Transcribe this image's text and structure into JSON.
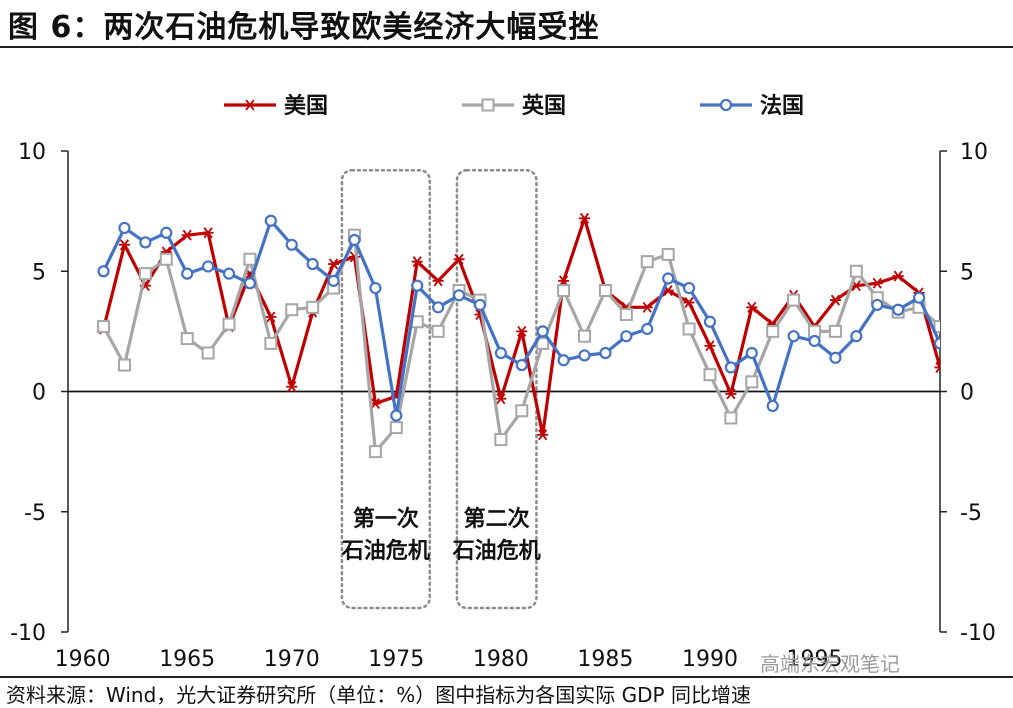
{
  "title": "图 6：两次石油危机导致欧美经济大幅受挫",
  "footer": {
    "source": "资料来源：Wind，光大证券研究所（单位：%）图中指标为各国实际 GDP 同比增速",
    "watermark": "高端东宏观笔记"
  },
  "chart_data": {
    "type": "line",
    "x": [
      1961,
      1962,
      1963,
      1964,
      1965,
      1966,
      1967,
      1968,
      1969,
      1970,
      1971,
      1972,
      1973,
      1974,
      1975,
      1976,
      1977,
      1978,
      1979,
      1980,
      1981,
      1982,
      1983,
      1984,
      1985,
      1986,
      1987,
      1988,
      1989,
      1990,
      1991,
      1992,
      1993,
      1994,
      1995,
      1996,
      1997,
      1998,
      1999,
      2000,
      2001
    ],
    "xlim": [
      1959.3,
      2001
    ],
    "xticks": [
      1960,
      1965,
      1970,
      1975,
      1980,
      1985,
      1990,
      1995
    ],
    "xtick_labels": [
      "1960",
      "1965",
      "1970",
      "1975",
      "1980",
      "1985",
      "1990",
      "1995"
    ],
    "ylim": [
      -10,
      10
    ],
    "yticks": [
      10,
      5,
      0,
      -5,
      -10
    ],
    "ytick_labels_left": [
      "10",
      "5",
      "0",
      "-5",
      "-10"
    ],
    "ytick_labels_right": [
      "10",
      "5",
      "0",
      "-5",
      "-10"
    ],
    "grid": false,
    "legend_position": "top",
    "series": [
      {
        "name": "美国",
        "color": "#C00000",
        "marker": "asterisk",
        "values": [
          2.6,
          6.1,
          4.4,
          5.8,
          6.5,
          6.6,
          2.7,
          4.9,
          3.1,
          0.2,
          3.3,
          5.3,
          5.6,
          -0.5,
          -0.2,
          5.4,
          4.6,
          5.5,
          3.2,
          -0.3,
          2.5,
          -1.8,
          4.6,
          7.2,
          4.2,
          3.5,
          3.5,
          4.2,
          3.7,
          1.9,
          -0.1,
          3.5,
          2.8,
          4.0,
          2.7,
          3.8,
          4.4,
          4.5,
          4.8,
          4.1,
          1.0
        ]
      },
      {
        "name": "英国",
        "color": "#A6A6A6",
        "marker": "square",
        "values": [
          2.7,
          1.1,
          4.9,
          5.5,
          2.2,
          1.6,
          2.8,
          5.5,
          2.0,
          3.4,
          3.5,
          4.3,
          6.5,
          -2.5,
          -1.5,
          2.9,
          2.5,
          4.2,
          3.8,
          -2.0,
          -0.8,
          2.0,
          4.2,
          2.3,
          4.2,
          3.2,
          5.4,
          5.7,
          2.6,
          0.7,
          -1.1,
          0.4,
          2.5,
          3.8,
          2.5,
          2.5,
          5.0,
          3.9,
          3.3,
          3.5,
          2.7
        ]
      },
      {
        "name": "法国",
        "color": "#4472C4",
        "marker": "circle",
        "values": [
          5.0,
          6.8,
          6.2,
          6.6,
          4.9,
          5.2,
          4.9,
          4.5,
          7.1,
          6.1,
          5.3,
          4.6,
          6.3,
          4.3,
          -1.0,
          4.4,
          3.5,
          4.0,
          3.6,
          1.6,
          1.1,
          2.5,
          1.3,
          1.5,
          1.6,
          2.3,
          2.6,
          4.7,
          4.3,
          2.9,
          1.0,
          1.6,
          -0.6,
          2.3,
          2.1,
          1.4,
          2.3,
          3.6,
          3.4,
          3.9,
          2.0
        ]
      }
    ],
    "annotations": [
      {
        "text_lines": [
          "第一次",
          "石油危机"
        ],
        "x_range": [
          1972.4,
          1976.6
        ],
        "y_range": [
          -9.0,
          9.2
        ]
      },
      {
        "text_lines": [
          "第二次",
          "石油危机"
        ],
        "x_range": [
          1977.9,
          1981.7
        ],
        "y_range": [
          -9.0,
          9.2
        ]
      }
    ]
  }
}
